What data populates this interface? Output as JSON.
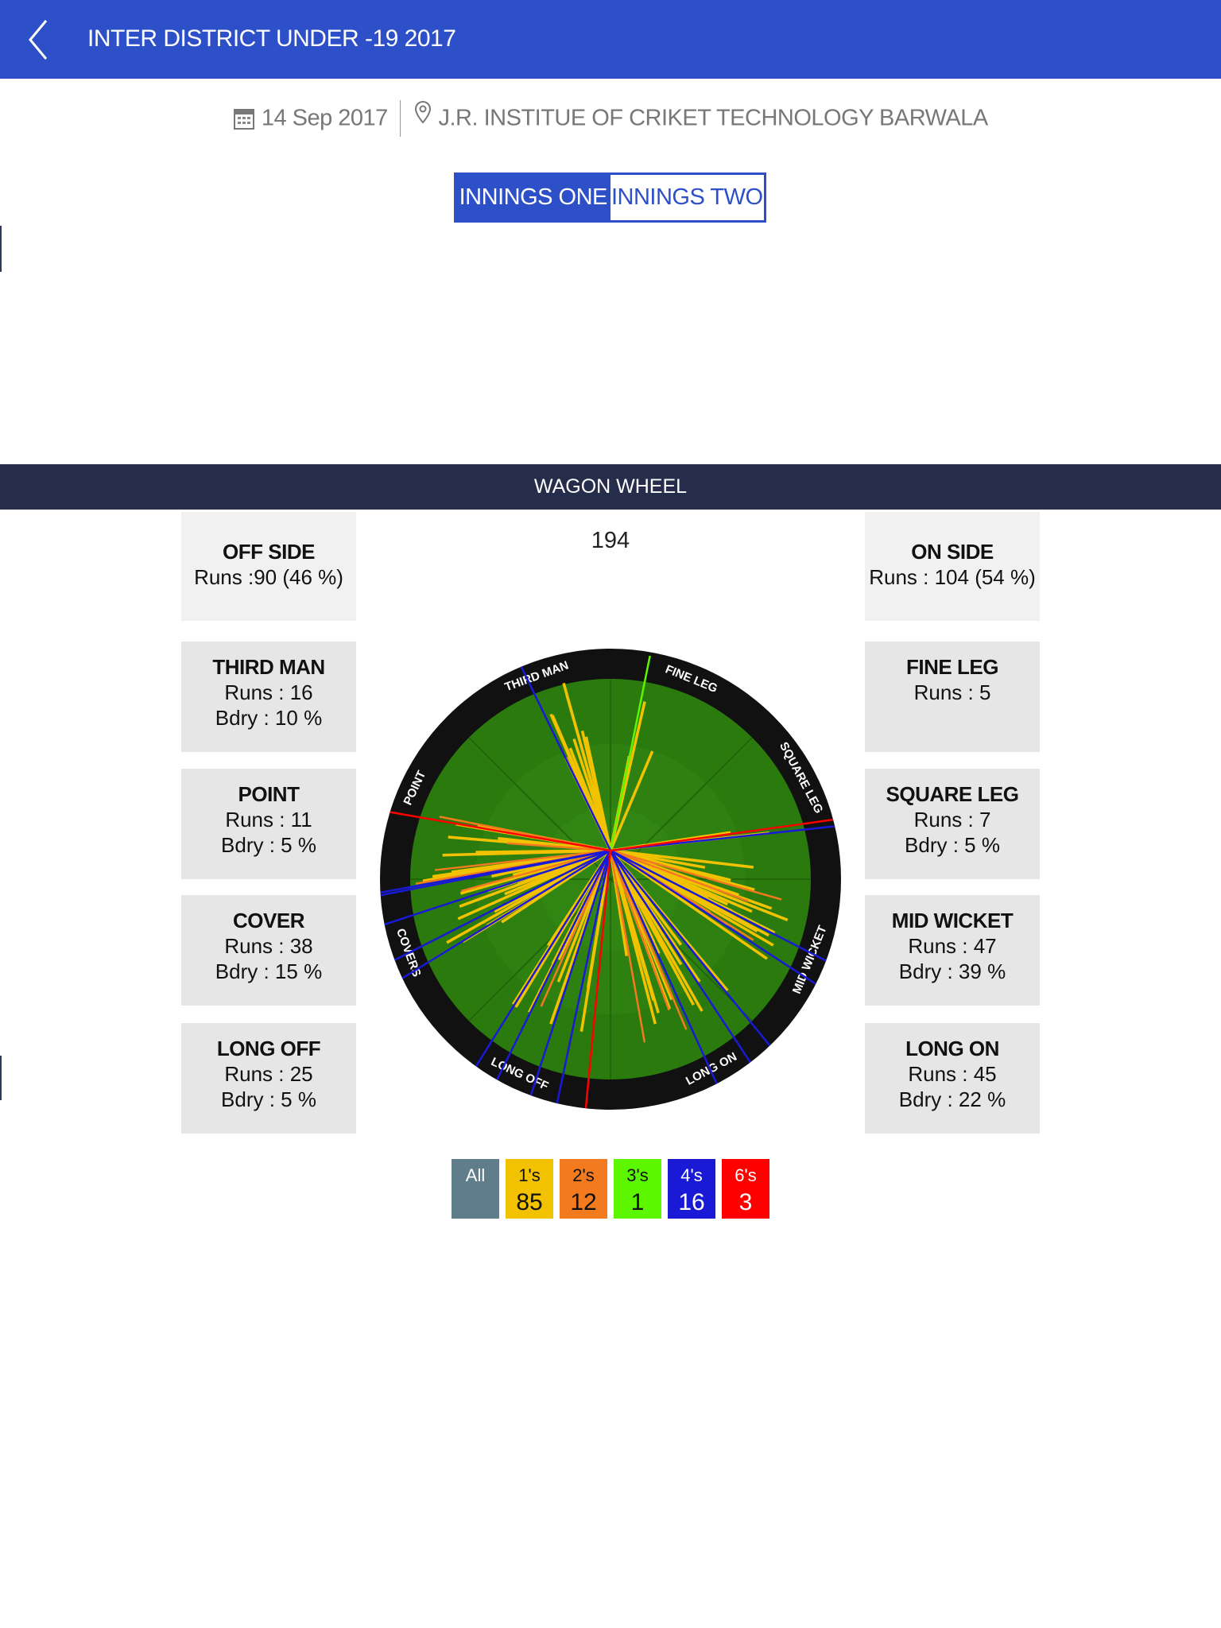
{
  "header": {
    "title": "INTER DISTRICT UNDER -19 2017",
    "back_icon": "chevron-left-icon"
  },
  "match": {
    "date": "14 Sep 2017",
    "venue": "J.R. INSTITUE OF CRIKET TECHNOLOGY BARWALA",
    "date_icon": "calendar-icon",
    "venue_icon": "map-pin-icon"
  },
  "innings": {
    "one": "INNINGS ONE",
    "two": "INNINGS TWO",
    "selected": "one"
  },
  "wagon": {
    "title": "WAGON WHEEL",
    "total": "194",
    "off_side": {
      "title": "OFF SIDE",
      "runs": "Runs :90 (46 %)"
    },
    "on_side": {
      "title": "ON SIDE",
      "runs": "Runs : 104 (54 %)"
    },
    "left_zones": [
      {
        "title": "THIRD MAN",
        "runs": "Runs : 16",
        "bdry": "Bdry : 10 %"
      },
      {
        "title": "POINT",
        "runs": "Runs : 11",
        "bdry": "Bdry : 5 %"
      },
      {
        "title": "COVER",
        "runs": "Runs : 38",
        "bdry": "Bdry : 15 %"
      },
      {
        "title": "LONG OFF",
        "runs": "Runs : 25",
        "bdry": "Bdry : 5 %"
      }
    ],
    "right_zones": [
      {
        "title": "FINE LEG",
        "runs": "Runs : 5",
        "bdry": ""
      },
      {
        "title": "SQUARE LEG",
        "runs": "Runs : 7",
        "bdry": "Bdry : 5 %"
      },
      {
        "title": "MID WICKET",
        "runs": "Runs : 47",
        "bdry": "Bdry : 39 %"
      },
      {
        "title": "LONG ON",
        "runs": "Runs : 45",
        "bdry": "Bdry : 22 %"
      }
    ],
    "field_labels": [
      "THIRD MAN",
      "FINE LEG",
      "SQUARE LEG",
      "MID WICKET",
      "LONG ON",
      "LONG OFF",
      "COVERS",
      "POINT"
    ]
  },
  "legend": [
    {
      "label": "All",
      "value": "",
      "color": "#607d8b",
      "text": "#ffffff"
    },
    {
      "label": "1's",
      "value": "85",
      "color": "#f2c200",
      "text": "#111111"
    },
    {
      "label": "2's",
      "value": "12",
      "color": "#f47a1f",
      "text": "#111111"
    },
    {
      "label": "3's",
      "value": "1",
      "color": "#5cf700",
      "text": "#111111"
    },
    {
      "label": "4's",
      "value": "16",
      "color": "#1a1ad6",
      "text": "#ffffff"
    },
    {
      "label": "6's",
      "value": "3",
      "color": "#ff0000",
      "text": "#ffffff"
    }
  ]
}
